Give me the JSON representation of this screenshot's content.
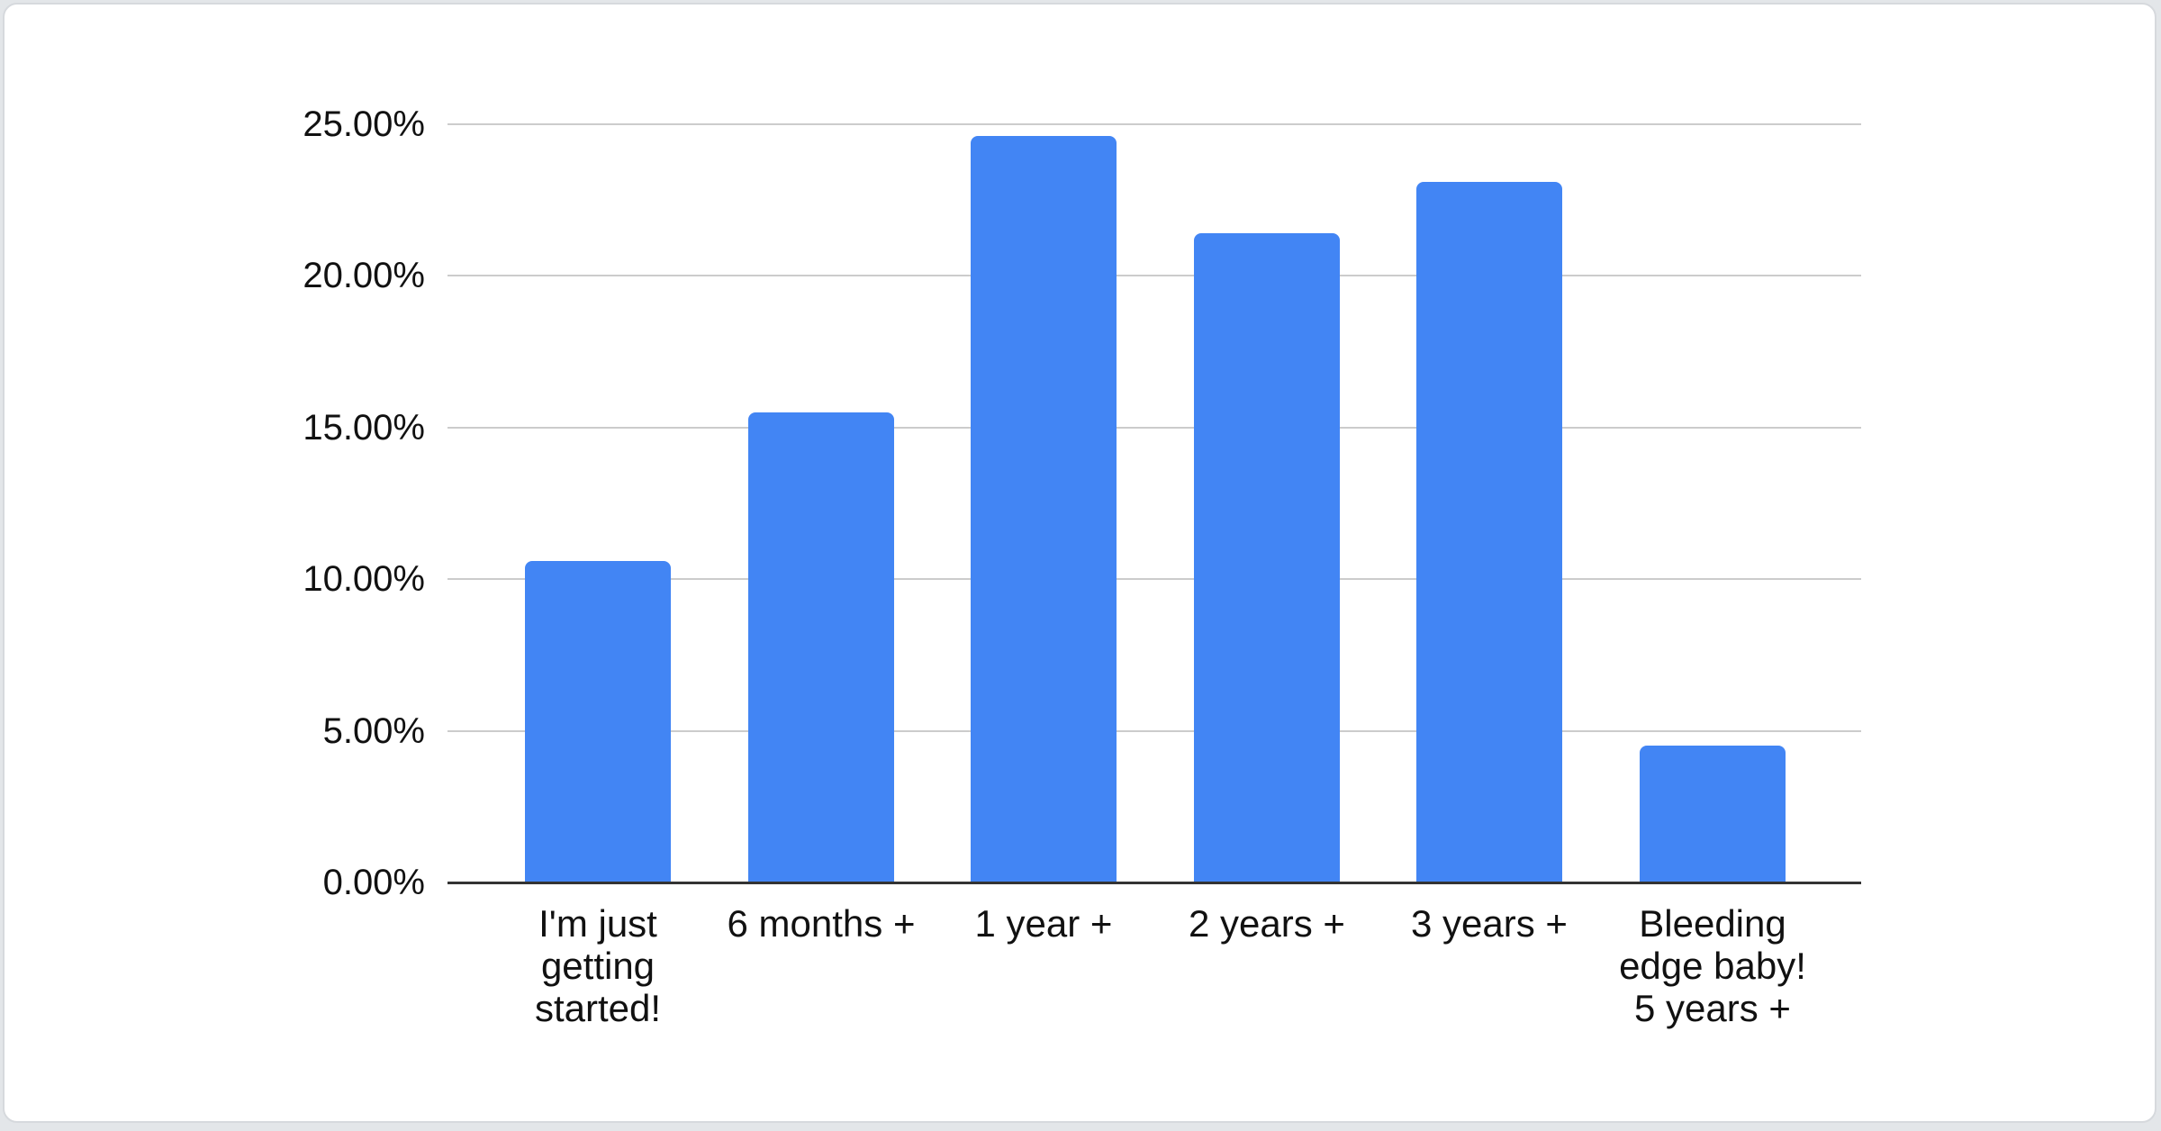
{
  "chart_data": {
    "type": "bar",
    "title": "",
    "xlabel": "",
    "ylabel": "",
    "categories": [
      "I'm just getting started!",
      "6 months +",
      "1 year +",
      "2 years +",
      "3 years +",
      "Bleeding edge baby! 5 years +"
    ],
    "category_label_lines": [
      [
        "I'm just",
        "getting",
        "started!"
      ],
      [
        "6 months +"
      ],
      [
        "1 year +"
      ],
      [
        "2 years +"
      ],
      [
        "3 years +"
      ],
      [
        "Bleeding",
        "edge baby!",
        "5 years +"
      ]
    ],
    "category_slugs": [
      "im-just-getting-started",
      "6-months-plus",
      "1-year-plus",
      "2-years-plus",
      "3-years-plus",
      "bleeding-edge-baby-5-years-plus"
    ],
    "values": [
      10.6,
      15.5,
      24.6,
      21.4,
      23.1,
      4.5
    ],
    "value_unit": "%",
    "ylim": [
      0,
      25
    ],
    "y_ticks": [
      {
        "value": 0,
        "label": "0.00%"
      },
      {
        "value": 5,
        "label": "5.00%"
      },
      {
        "value": 10,
        "label": "10.00%"
      },
      {
        "value": 15,
        "label": "15.00%"
      },
      {
        "value": 20,
        "label": "20.00%"
      },
      {
        "value": 25,
        "label": "25.00%"
      }
    ],
    "grid": true,
    "legend": "none",
    "colors": {
      "bar": "#4285F4",
      "gridline": "#cccccc",
      "baseline": "#333333",
      "label_text": "#111111",
      "card_background": "#ffffff",
      "page_background": "#e3e6e9",
      "card_border": "#d6d9dd"
    }
  }
}
